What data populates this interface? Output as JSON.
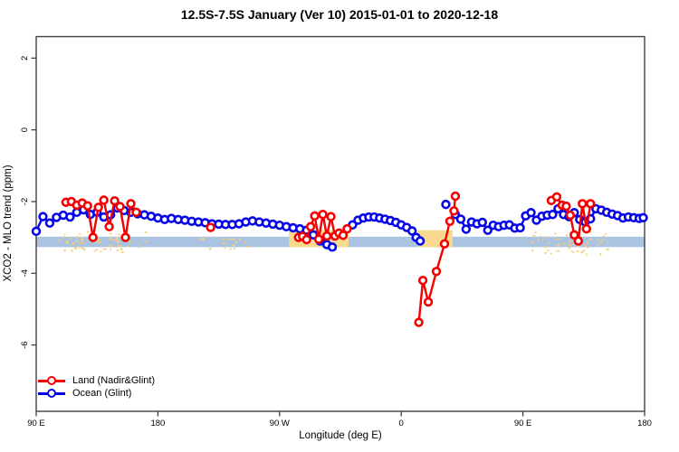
{
  "title": "12.5S-7.5S January (Ver 10)   2015-01-01 to 2020-12-18",
  "legend": {
    "items": [
      {
        "label": "Land (Nadir&Glint)",
        "color": "#f40000"
      },
      {
        "label": "Ocean (Glint)",
        "color": "#0505e8"
      }
    ]
  },
  "chart_data": {
    "type": "line",
    "title": "12.5S-7.5S January (Ver 10)   2015-01-01 to 2020-12-18",
    "xlabel": "Longitude (deg E)",
    "ylabel": "XCO2 - MLO trend (ppm)",
    "x_axis": {
      "range": [
        90,
        540
      ],
      "ticks": [
        {
          "pos": 90,
          "label": "90 E"
        },
        {
          "pos": 180,
          "label": "180"
        },
        {
          "pos": 270,
          "label": "90 W"
        },
        {
          "pos": 360,
          "label": "0"
        },
        {
          "pos": 450,
          "label": "90 E"
        },
        {
          "pos": 540,
          "label": "180"
        }
      ]
    },
    "y_axis": {
      "range": [
        -7.85,
        2.6
      ],
      "ticks": [
        {
          "pos": 2,
          "label": "2"
        },
        {
          "pos": 0,
          "label": "0"
        },
        {
          "pos": -2,
          "label": "-2"
        },
        {
          "pos": -4,
          "label": "-4"
        },
        {
          "pos": -6,
          "label": "-6"
        }
      ]
    },
    "grid": false,
    "legend_position": "bottom-left",
    "bands": [
      {
        "name": "reference-band",
        "x0": 90,
        "x1": 540,
        "v0": -2.98,
        "v1": -3.27,
        "color": "#aac3e0"
      },
      {
        "name": "land-highlight-1",
        "x0": 277,
        "x1": 321,
        "v0": -2.8,
        "v1": -3.27,
        "color": "#f8d98e"
      },
      {
        "name": "land-highlight-2",
        "x0": 372,
        "x1": 398,
        "v0": -2.8,
        "v1": -3.27,
        "color": "#f8d98e"
      }
    ],
    "speckle_regions": [
      {
        "x0": 104,
        "x1": 172,
        "v0": -2.82,
        "v1": -3.4,
        "count": 60,
        "color": "#f6cd7a"
      },
      {
        "x0": 210,
        "x1": 250,
        "v0": -3.0,
        "v1": -3.3,
        "count": 18,
        "color": "#f6cd7a"
      },
      {
        "x0": 455,
        "x1": 512,
        "v0": -2.82,
        "v1": -3.45,
        "count": 55,
        "color": "#f6cd7a"
      }
    ],
    "series": [
      {
        "name": "Ocean (Glint)",
        "color": "#0505e8",
        "segments": [
          [
            [
              90,
              -2.83
            ],
            [
              95,
              -2.42
            ],
            [
              100,
              -2.6
            ],
            [
              105,
              -2.44
            ],
            [
              110,
              -2.38
            ],
            [
              115,
              -2.43
            ],
            [
              120,
              -2.3
            ],
            [
              125,
              -2.23
            ],
            [
              130,
              -2.36
            ],
            [
              135,
              -2.3
            ],
            [
              140,
              -2.43
            ],
            [
              145,
              -2.37
            ],
            [
              150,
              -2.18
            ],
            [
              155,
              -2.25
            ],
            [
              160,
              -2.3
            ],
            [
              165,
              -2.34
            ],
            [
              170,
              -2.37
            ],
            [
              175,
              -2.41
            ],
            [
              180,
              -2.46
            ],
            [
              185,
              -2.5
            ],
            [
              190,
              -2.47
            ],
            [
              195,
              -2.5
            ],
            [
              200,
              -2.52
            ],
            [
              205,
              -2.55
            ],
            [
              210,
              -2.57
            ],
            [
              215,
              -2.59
            ],
            [
              220,
              -2.62
            ],
            [
              225,
              -2.63
            ],
            [
              230,
              -2.64
            ],
            [
              235,
              -2.64
            ],
            [
              240,
              -2.62
            ],
            [
              245,
              -2.57
            ],
            [
              250,
              -2.54
            ],
            [
              255,
              -2.57
            ],
            [
              260,
              -2.6
            ],
            [
              265,
              -2.63
            ],
            [
              270,
              -2.66
            ],
            [
              275,
              -2.7
            ],
            [
              280,
              -2.73
            ],
            [
              285,
              -2.76
            ],
            [
              290,
              -2.8
            ],
            [
              295,
              -2.93
            ],
            [
              300,
              -3.1
            ],
            [
              305,
              -3.2
            ],
            [
              309,
              -3.27
            ]
          ],
          [
            [
              324,
              -2.65
            ],
            [
              328,
              -2.52
            ],
            [
              332,
              -2.46
            ],
            [
              336,
              -2.43
            ],
            [
              340,
              -2.43
            ],
            [
              344,
              -2.46
            ],
            [
              348,
              -2.49
            ],
            [
              352,
              -2.53
            ],
            [
              356,
              -2.58
            ],
            [
              360,
              -2.65
            ],
            [
              364,
              -2.72
            ],
            [
              368,
              -2.82
            ],
            [
              371,
              -3.0
            ],
            [
              374,
              -3.1
            ]
          ],
          [
            [
              393,
              -2.08
            ]
          ],
          [
            [
              400,
              -2.36
            ],
            [
              404,
              -2.49
            ],
            [
              408,
              -2.77
            ],
            [
              412,
              -2.57
            ],
            [
              416,
              -2.62
            ],
            [
              420,
              -2.58
            ],
            [
              424,
              -2.8
            ],
            [
              428,
              -2.66
            ],
            [
              432,
              -2.7
            ],
            [
              436,
              -2.66
            ],
            [
              440,
              -2.65
            ],
            [
              444,
              -2.74
            ],
            [
              448,
              -2.73
            ],
            [
              452,
              -2.4
            ],
            [
              456,
              -2.31
            ],
            [
              460,
              -2.52
            ],
            [
              464,
              -2.41
            ],
            [
              468,
              -2.38
            ],
            [
              472,
              -2.36
            ],
            [
              476,
              -2.2
            ],
            [
              480,
              -2.36
            ],
            [
              484,
              -2.42
            ],
            [
              488,
              -2.31
            ],
            [
              492,
              -2.5
            ],
            [
              496,
              -2.57
            ],
            [
              500,
              -2.48
            ],
            [
              504,
              -2.2
            ],
            [
              508,
              -2.24
            ],
            [
              512,
              -2.3
            ],
            [
              516,
              -2.35
            ],
            [
              520,
              -2.39
            ],
            [
              524,
              -2.46
            ],
            [
              528,
              -2.43
            ],
            [
              532,
              -2.45
            ],
            [
              536,
              -2.47
            ],
            [
              539,
              -2.45
            ]
          ]
        ]
      },
      {
        "name": "Land (Nadir&Glint)",
        "color": "#f40000",
        "segments": [
          [
            [
              112,
              -2.02
            ],
            [
              116,
              -2.0
            ],
            [
              120,
              -2.1
            ],
            [
              124,
              -2.04
            ],
            [
              128,
              -2.12
            ],
            [
              132,
              -3.0
            ],
            [
              136,
              -2.16
            ],
            [
              140,
              -1.96
            ],
            [
              144,
              -2.7
            ],
            [
              148,
              -1.98
            ],
            [
              152,
              -2.14
            ],
            [
              156,
              -3.0
            ],
            [
              160,
              -2.06
            ],
            [
              164,
              -2.3
            ]
          ],
          [
            [
              219,
              -2.72
            ]
          ],
          [
            [
              284,
              -3.0
            ],
            [
              287,
              -2.97
            ],
            [
              290,
              -3.06
            ],
            [
              293,
              -2.7
            ],
            [
              296,
              -2.4
            ],
            [
              299,
              -3.05
            ],
            [
              302,
              -2.36
            ],
            [
              305,
              -2.96
            ],
            [
              308,
              -2.42
            ],
            [
              311,
              -2.96
            ],
            [
              314,
              -2.88
            ],
            [
              317,
              -2.94
            ],
            [
              320,
              -2.76
            ]
          ],
          [
            [
              373,
              -5.37
            ],
            [
              376,
              -4.2
            ],
            [
              380,
              -4.8
            ],
            [
              386,
              -3.95
            ],
            [
              392,
              -3.18
            ],
            [
              396,
              -2.55
            ],
            [
              399,
              -2.26
            ],
            [
              400,
              -1.85
            ]
          ],
          [
            [
              471,
              -1.97
            ],
            [
              475,
              -1.87
            ],
            [
              479,
              -2.1
            ],
            [
              482,
              -2.13
            ],
            [
              485,
              -2.38
            ],
            [
              488,
              -2.93
            ],
            [
              491,
              -3.1
            ],
            [
              494,
              -2.06
            ],
            [
              497,
              -2.76
            ],
            [
              500,
              -2.06
            ]
          ]
        ]
      }
    ]
  }
}
